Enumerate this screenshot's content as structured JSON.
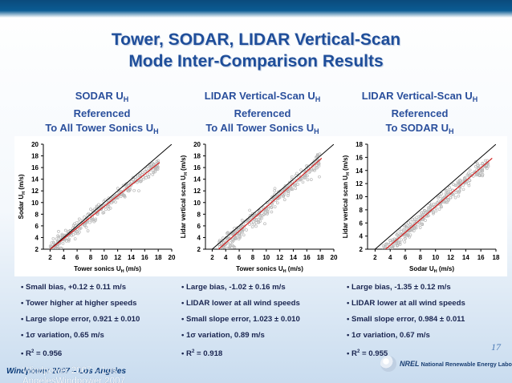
{
  "title_line1": "Tower, SODAR, LIDAR Vertical-Scan",
  "title_line2": "Mode Inter-Comparison Results",
  "panels": [
    {
      "heading_lines": [
        "SODAR U",
        "Referenced",
        "To All Tower Sonics U"
      ],
      "heading_subs": [
        "H",
        "",
        "H"
      ],
      "bullets": [
        "Small bias, +0.12 ± 0.11 m/s",
        "Tower higher at higher speeds",
        "Large slope error, 0.921 ± 0.010",
        "1σ variation, 0.65 m/s"
      ],
      "r2_prefix": "R",
      "r2_sup": "2",
      "r2_value": " = 0.956"
    },
    {
      "heading_lines": [
        "LIDAR Vertical-Scan U",
        "Referenced",
        "To All Tower Sonics U"
      ],
      "heading_subs": [
        "H",
        "",
        "H"
      ],
      "bullets": [
        "Large bias, -1.02 ± 0.16 m/s",
        "LIDAR lower at all wind speeds",
        "Small slope error, 1.023 ± 0.010",
        "1σ variation, 0.89 m/s"
      ],
      "r2_prefix": "R",
      "r2_sup": "2",
      "r2_value": " = 0.918"
    },
    {
      "heading_lines": [
        "LIDAR Vertical-Scan U",
        "Referenced",
        "To SODAR U"
      ],
      "heading_subs": [
        "H",
        "",
        "H"
      ],
      "bullets": [
        "Large bias, -1.35 ± 0.12 m/s",
        "LIDAR lower at all wind speeds",
        "Small slope error, 0.984 ± 0.011",
        "1σ variation, 0.67 m/s"
      ],
      "r2_prefix": "R",
      "r2_sup": "2",
      "r2_value": " = 0.955"
    }
  ],
  "page_number": "17",
  "footer_event": "Windpower 2007 – Los Angeles",
  "footer_overlay": "Windpower 2007 – Los AngelesWindpower 2007",
  "logo_text": "National Renewable Energy Laboratory",
  "logo_abbrev": "NREL",
  "colors": {
    "title": "#1f4e9a",
    "bullet_text": "#1a2550",
    "marker": "#b8b8b8",
    "one_to_one_line": "#000000",
    "fit_line": "#d11a1a"
  },
  "chart_data": [
    {
      "type": "scatter",
      "xlabel": "Tower sonics U",
      "xlabel_sub": "H",
      "xlabel_unit": " (m/s)",
      "ylabel": "Sodar U",
      "ylabel_sub": "H",
      "ylabel_unit": " (m/s)",
      "xlim": [
        1,
        20
      ],
      "ylim": [
        2,
        20
      ],
      "xticks": [
        2,
        4,
        6,
        8,
        10,
        12,
        14,
        16,
        18,
        20
      ],
      "yticks": [
        2,
        4,
        6,
        8,
        10,
        12,
        14,
        16,
        18,
        20
      ],
      "grid": false,
      "points_xrange": [
        2,
        18
      ],
      "series": [
        {
          "kind": "one-to-one",
          "x": [
            1,
            20
          ],
          "y": [
            1,
            20
          ]
        },
        {
          "kind": "fit",
          "slope": 0.921,
          "intercept": 0.12,
          "x": [
            1.5,
            18.2
          ]
        }
      ],
      "scatter_sigma": 0.65
    },
    {
      "type": "scatter",
      "xlabel": "Tower sonics U",
      "xlabel_sub": "H",
      "xlabel_unit": " (m/s)",
      "ylabel": "Lidar vertical scan U",
      "ylabel_sub": "H",
      "ylabel_unit": " (m/s)",
      "xlim": [
        1,
        20
      ],
      "ylim": [
        2,
        20
      ],
      "xticks": [
        2,
        4,
        6,
        8,
        10,
        12,
        14,
        16,
        18,
        20
      ],
      "yticks": [
        2,
        4,
        6,
        8,
        10,
        12,
        14,
        16,
        18,
        20
      ],
      "grid": false,
      "points_xrange": [
        3,
        18
      ],
      "series": [
        {
          "kind": "one-to-one",
          "x": [
            1,
            20
          ],
          "y": [
            1,
            20
          ]
        },
        {
          "kind": "fit",
          "slope": 1.023,
          "intercept": -1.02,
          "x": [
            2.8,
            18.2
          ]
        }
      ],
      "scatter_sigma": 0.89
    },
    {
      "type": "scatter",
      "xlabel": "Sodar U",
      "xlabel_sub": "H",
      "xlabel_unit": " (m/s)",
      "ylabel": "Lidar vertical scan U",
      "ylabel_sub": "H",
      "ylabel_unit": " (m/s)",
      "xlim": [
        1,
        18
      ],
      "ylim": [
        2,
        18
      ],
      "xticks": [
        2,
        4,
        6,
        8,
        10,
        12,
        14,
        16,
        18
      ],
      "yticks": [
        2,
        4,
        6,
        8,
        10,
        12,
        14,
        16,
        18
      ],
      "grid": false,
      "points_xrange": [
        3,
        17
      ],
      "series": [
        {
          "kind": "one-to-one",
          "x": [
            1,
            18
          ],
          "y": [
            1,
            18
          ]
        },
        {
          "kind": "fit",
          "slope": 0.984,
          "intercept": -1.35,
          "x": [
            3.3,
            17.5
          ]
        }
      ],
      "scatter_sigma": 0.67
    }
  ]
}
